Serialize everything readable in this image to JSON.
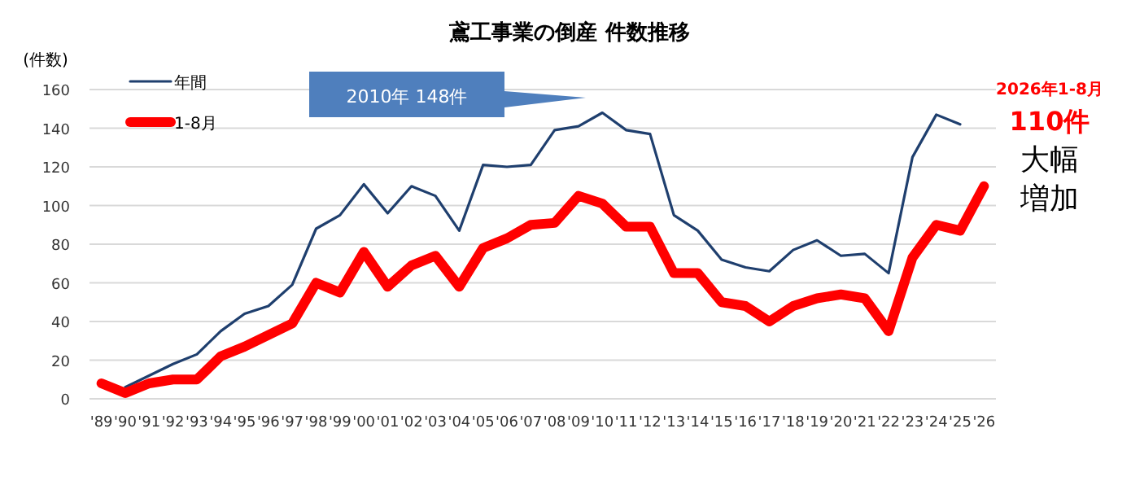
{
  "chart_data": {
    "type": "line",
    "title": "鳶工事業の倒産  件数推移",
    "ylabel": "(件数)",
    "categories": [
      "'89",
      "'90",
      "'91",
      "'92",
      "'93",
      "'94",
      "'95",
      "'96",
      "'97",
      "'98",
      "'99",
      "'00",
      "'01",
      "'02",
      "'03",
      "'04",
      "'05",
      "'06",
      "'07",
      "'08",
      "'09",
      "'10",
      "'11",
      "'12",
      "'13",
      "'14",
      "'15",
      "'16",
      "'17",
      "'18",
      "'19",
      "'20",
      "'21",
      "'22",
      "'23",
      "'24",
      "'25",
      "'26"
    ],
    "series": [
      {
        "name": "年間",
        "color": "#1f3f6e",
        "values": [
          null,
          6,
          12,
          18,
          23,
          35,
          44,
          48,
          59,
          88,
          95,
          111,
          96,
          110,
          105,
          87,
          121,
          120,
          121,
          139,
          141,
          148,
          139,
          137,
          95,
          87,
          72,
          68,
          66,
          77,
          82,
          74,
          75,
          65,
          125,
          147,
          142,
          null
        ]
      },
      {
        "name": "1-8月",
        "color": "#ff0000",
        "values": [
          8,
          3,
          8,
          10,
          10,
          22,
          27,
          33,
          39,
          60,
          55,
          76,
          58,
          69,
          74,
          58,
          78,
          83,
          90,
          91,
          105,
          101,
          89,
          89,
          65,
          65,
          50,
          48,
          40,
          48,
          52,
          54,
          52,
          35,
          73,
          90,
          87,
          110
        ]
      }
    ],
    "ylim": [
      0,
      160
    ],
    "yticks": [
      0,
      20,
      40,
      60,
      80,
      100,
      120,
      140,
      160
    ],
    "grid": "y",
    "legend": "top left",
    "annotations": [
      "2010年  148件",
      "2026年1-8月",
      "110件",
      "大幅",
      "増加"
    ]
  }
}
